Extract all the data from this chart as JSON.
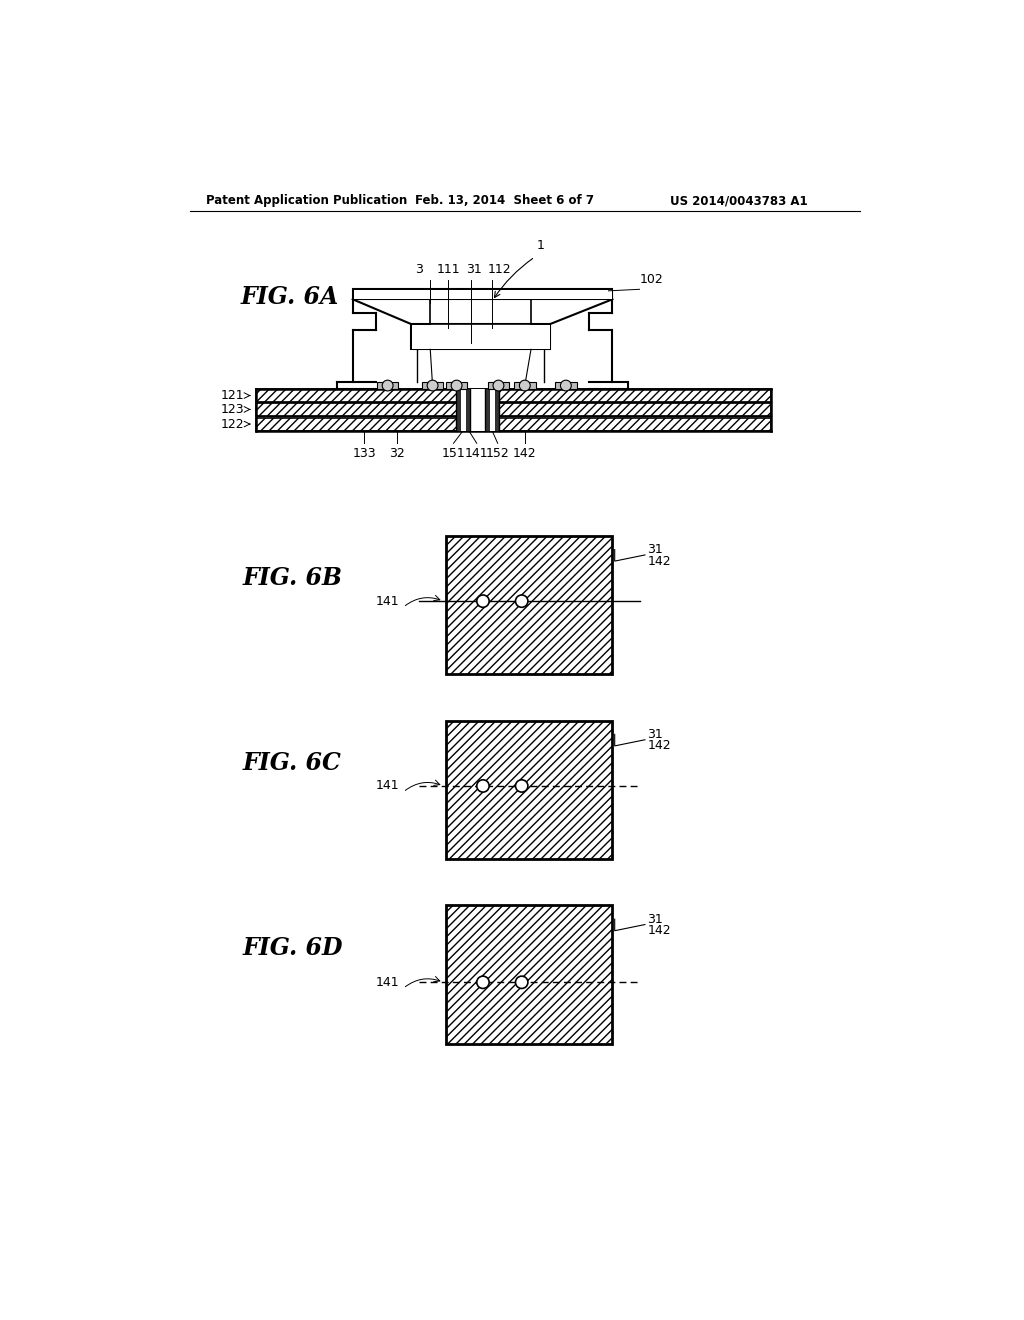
{
  "bg_color": "#ffffff",
  "header_left": "Patent Application Publication",
  "header_mid": "Feb. 13, 2014  Sheet 6 of 7",
  "header_right": "US 2014/0043783 A1"
}
